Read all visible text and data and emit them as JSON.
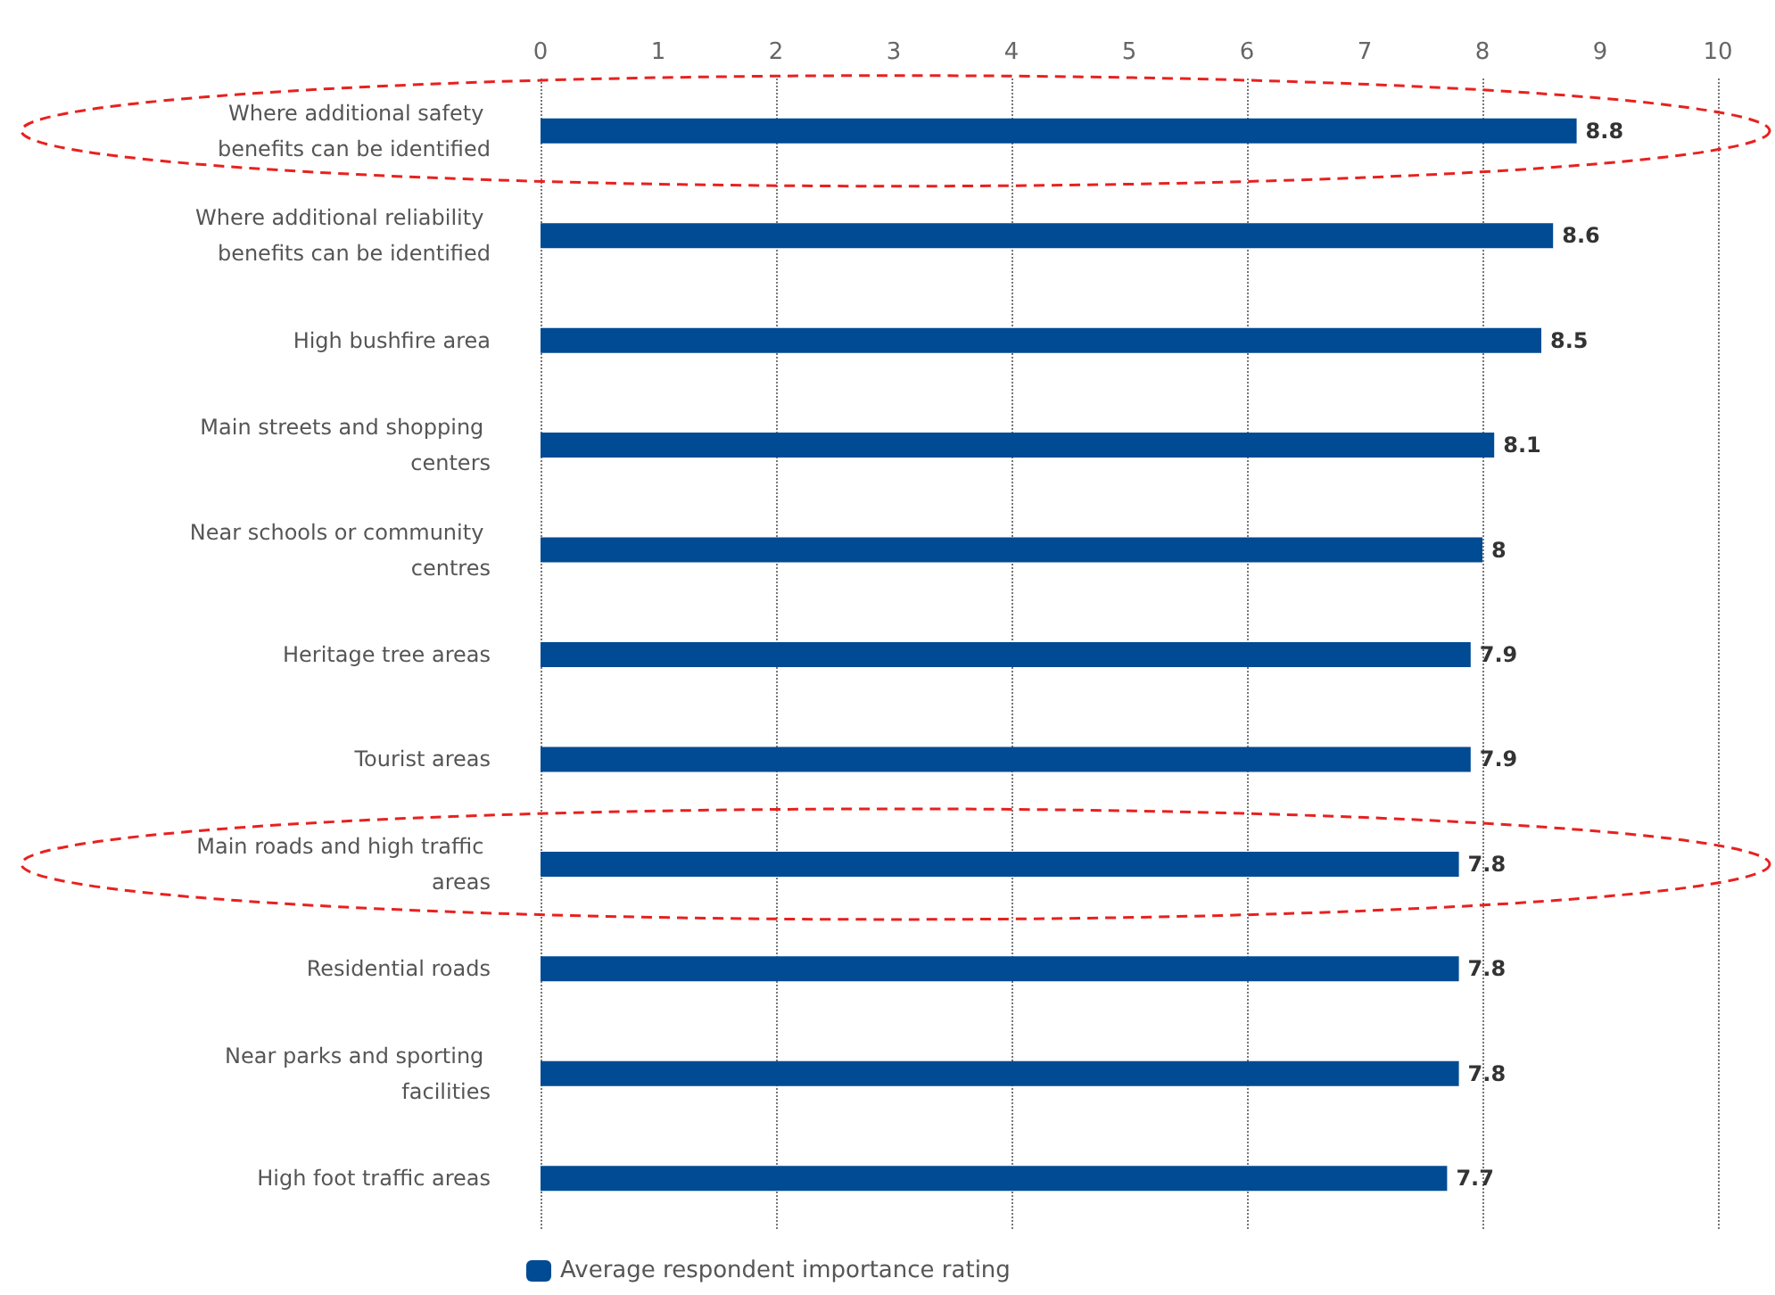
{
  "chart_data": {
    "type": "bar",
    "orientation": "horizontal",
    "categories": [
      "Where additional safety benefits can be identified",
      "Where additional reliability benefits can be identified",
      "High bushfire area",
      "Main streets and shopping centers",
      "Near schools or community centres",
      "Heritage tree areas",
      "Tourist areas",
      "Main roads and high traffic areas",
      "Residential roads",
      "Near parks and sporting facilities",
      "High foot traffic areas"
    ],
    "series": [
      {
        "name": "Average respondent importance rating",
        "color": "#004b93",
        "values": [
          8.8,
          8.6,
          8.5,
          8.1,
          8,
          7.9,
          7.9,
          7.8,
          7.8,
          7.8,
          7.7
        ]
      }
    ],
    "xlim": [
      0,
      10
    ],
    "xticks": [
      0,
      1,
      2,
      3,
      4,
      5,
      6,
      7,
      8,
      9,
      10
    ],
    "grid": "x",
    "legend": "bottom left",
    "data_labels": true
  }
}
